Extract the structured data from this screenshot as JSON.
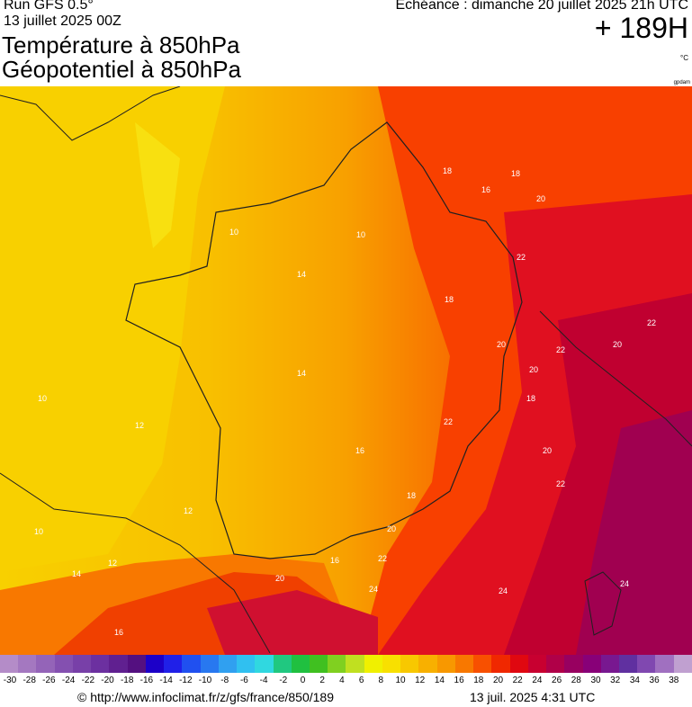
{
  "header": {
    "run": "Run GFS 0.5°",
    "run_date": "13 juillet 2025 00Z",
    "title_line1": "Température à 850hPa",
    "title_line2": "Géopotentiel à 850hPa",
    "echeance": "Echéance : dimanche 20 juillet 2025 21h UTC",
    "forecast_hours": "+ 189H",
    "unit": "°C",
    "small_credit": "gpdam"
  },
  "map": {
    "contour_labels": [
      "10",
      "10",
      "10",
      "10",
      "12",
      "12",
      "12",
      "14",
      "14",
      "14",
      "16",
      "16",
      "16",
      "16",
      "18",
      "18",
      "18",
      "18",
      "18",
      "20",
      "20",
      "20",
      "20",
      "20",
      "20",
      "20",
      "22",
      "22",
      "22",
      "22",
      "22",
      "22",
      "24",
      "24",
      "24",
      "16"
    ]
  },
  "scale": {
    "labels": [
      "-30",
      "-28",
      "-26",
      "-24",
      "-22",
      "-20",
      "-18",
      "-16",
      "-14",
      "-12",
      "-10",
      "-8",
      "-6",
      "-4",
      "-2",
      "0",
      "2",
      "4",
      "6",
      "8",
      "10",
      "12",
      "14",
      "16",
      "18",
      "20",
      "22",
      "24",
      "26",
      "28",
      "30",
      "32",
      "34",
      "36",
      "38"
    ],
    "colors": [
      "#b48cc8",
      "#a478c0",
      "#9464b8",
      "#8450b0",
      "#7840a8",
      "#6c30a0",
      "#602090",
      "#541080",
      "#1c00c8",
      "#2020e8",
      "#2050f0",
      "#2878f0",
      "#30a0f0",
      "#30c0f0",
      "#30d8e0",
      "#20c880",
      "#20c040",
      "#40c020",
      "#80d020",
      "#c0e020",
      "#f0f000",
      "#f8e000",
      "#f8c800",
      "#f8b000",
      "#f89800",
      "#f87800",
      "#f85000",
      "#f02800",
      "#e00810",
      "#c80030",
      "#b00048",
      "#980060",
      "#880078",
      "#781890",
      "#6030a0",
      "#8048b0",
      "#a070c0",
      "#c0a0d0"
    ]
  },
  "footer": {
    "url": "© http://www.infoclimat.fr/z/gfs/france/850/189",
    "timestamp": "13 juil. 2025  4:31 UTC"
  }
}
